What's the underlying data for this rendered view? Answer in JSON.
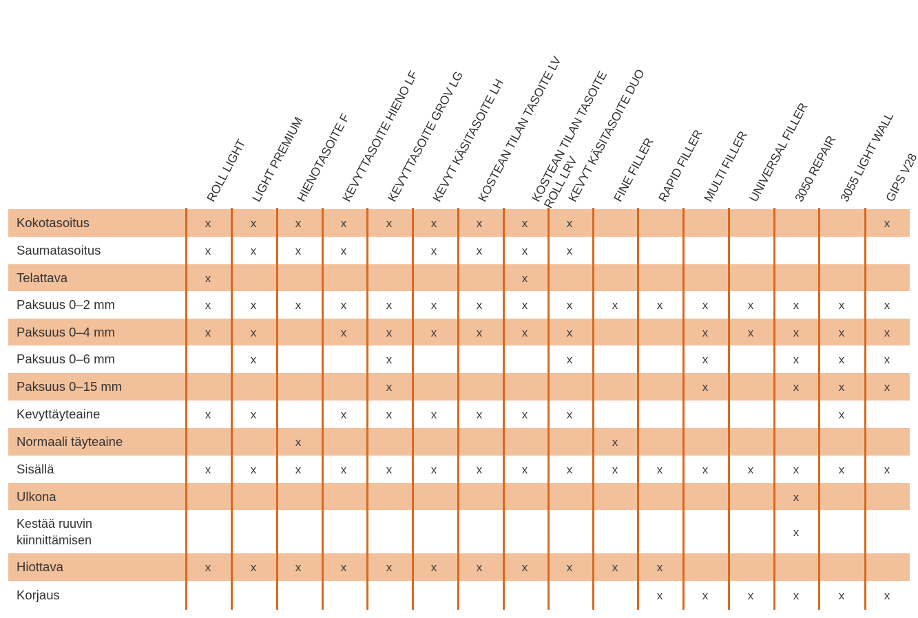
{
  "colors": {
    "band": "#f2c09b",
    "divider": "#d9691e",
    "text": "#333333"
  },
  "mark_symbol": "x",
  "products": [
    "ROLL LIGHT",
    "LIGHT PREMIUM",
    "HIENOTASOITE F",
    "KEVYTTASOITE HIENO LF",
    "KEVYTTASOITE GROV LG",
    "KEVYT KÄSITASOITE LH",
    "KOSTEAN TILAN TASOITE LV",
    "KOSTEAN TILAN TASOITE\nROLL LRV",
    "KEVYT KÄSITASOITE DUO",
    "FINE FILLER",
    "RAPID FILLER",
    "MULTI FILLER",
    "UNIVERSAL FILLER",
    "3050 REPAIR",
    "3055 LIGHT WALL",
    "GIPS V28"
  ],
  "rows": [
    {
      "label": "Kokotasoitus",
      "shaded": true,
      "marks": [
        1,
        1,
        1,
        1,
        1,
        1,
        1,
        1,
        1,
        0,
        0,
        0,
        0,
        0,
        0,
        1
      ]
    },
    {
      "label": "Saumatasoitus",
      "shaded": false,
      "marks": [
        1,
        1,
        1,
        1,
        0,
        1,
        1,
        1,
        1,
        0,
        0,
        0,
        0,
        0,
        0,
        0
      ]
    },
    {
      "label": "Telattava",
      "shaded": true,
      "marks": [
        1,
        0,
        0,
        0,
        0,
        0,
        0,
        1,
        0,
        0,
        0,
        0,
        0,
        0,
        0,
        0
      ]
    },
    {
      "label": "Paksuus 0–2 mm",
      "shaded": false,
      "marks": [
        1,
        1,
        1,
        1,
        1,
        1,
        1,
        1,
        1,
        1,
        1,
        1,
        1,
        1,
        1,
        1
      ]
    },
    {
      "label": "Paksuus 0–4 mm",
      "shaded": true,
      "marks": [
        1,
        1,
        0,
        1,
        1,
        1,
        1,
        1,
        1,
        0,
        0,
        1,
        1,
        1,
        1,
        1
      ]
    },
    {
      "label": "Paksuus 0–6 mm",
      "shaded": false,
      "marks": [
        0,
        1,
        0,
        0,
        1,
        0,
        0,
        0,
        1,
        0,
        0,
        1,
        0,
        1,
        1,
        1
      ]
    },
    {
      "label": "Paksuus 0–15 mm",
      "shaded": true,
      "marks": [
        0,
        0,
        0,
        0,
        1,
        0,
        0,
        0,
        0,
        0,
        0,
        1,
        0,
        1,
        1,
        1
      ]
    },
    {
      "label": "Kevyttäyteaine",
      "shaded": false,
      "marks": [
        1,
        1,
        0,
        1,
        1,
        1,
        1,
        1,
        1,
        0,
        0,
        0,
        0,
        0,
        1,
        0
      ]
    },
    {
      "label": "Normaali täyteaine",
      "shaded": true,
      "marks": [
        0,
        0,
        1,
        0,
        0,
        0,
        0,
        0,
        0,
        1,
        0,
        0,
        0,
        0,
        0,
        0
      ]
    },
    {
      "label": "Sisällä",
      "shaded": false,
      "marks": [
        1,
        1,
        1,
        1,
        1,
        1,
        1,
        1,
        1,
        1,
        1,
        1,
        1,
        1,
        1,
        1
      ]
    },
    {
      "label": "Ulkona",
      "shaded": true,
      "marks": [
        0,
        0,
        0,
        0,
        0,
        0,
        0,
        0,
        0,
        0,
        0,
        0,
        0,
        1,
        0,
        0
      ]
    },
    {
      "label": "Kestää ruuvin\nkiinnittämisen",
      "shaded": false,
      "marks": [
        0,
        0,
        0,
        0,
        0,
        0,
        0,
        0,
        0,
        0,
        0,
        0,
        0,
        1,
        0,
        0
      ]
    },
    {
      "label": "Hiottava",
      "shaded": true,
      "marks": [
        1,
        1,
        1,
        1,
        1,
        1,
        1,
        1,
        1,
        1,
        1,
        0,
        0,
        0,
        0,
        0
      ]
    },
    {
      "label": "Korjaus",
      "shaded": false,
      "marks": [
        0,
        0,
        0,
        0,
        0,
        0,
        0,
        0,
        0,
        0,
        1,
        1,
        1,
        1,
        1,
        1
      ]
    }
  ]
}
